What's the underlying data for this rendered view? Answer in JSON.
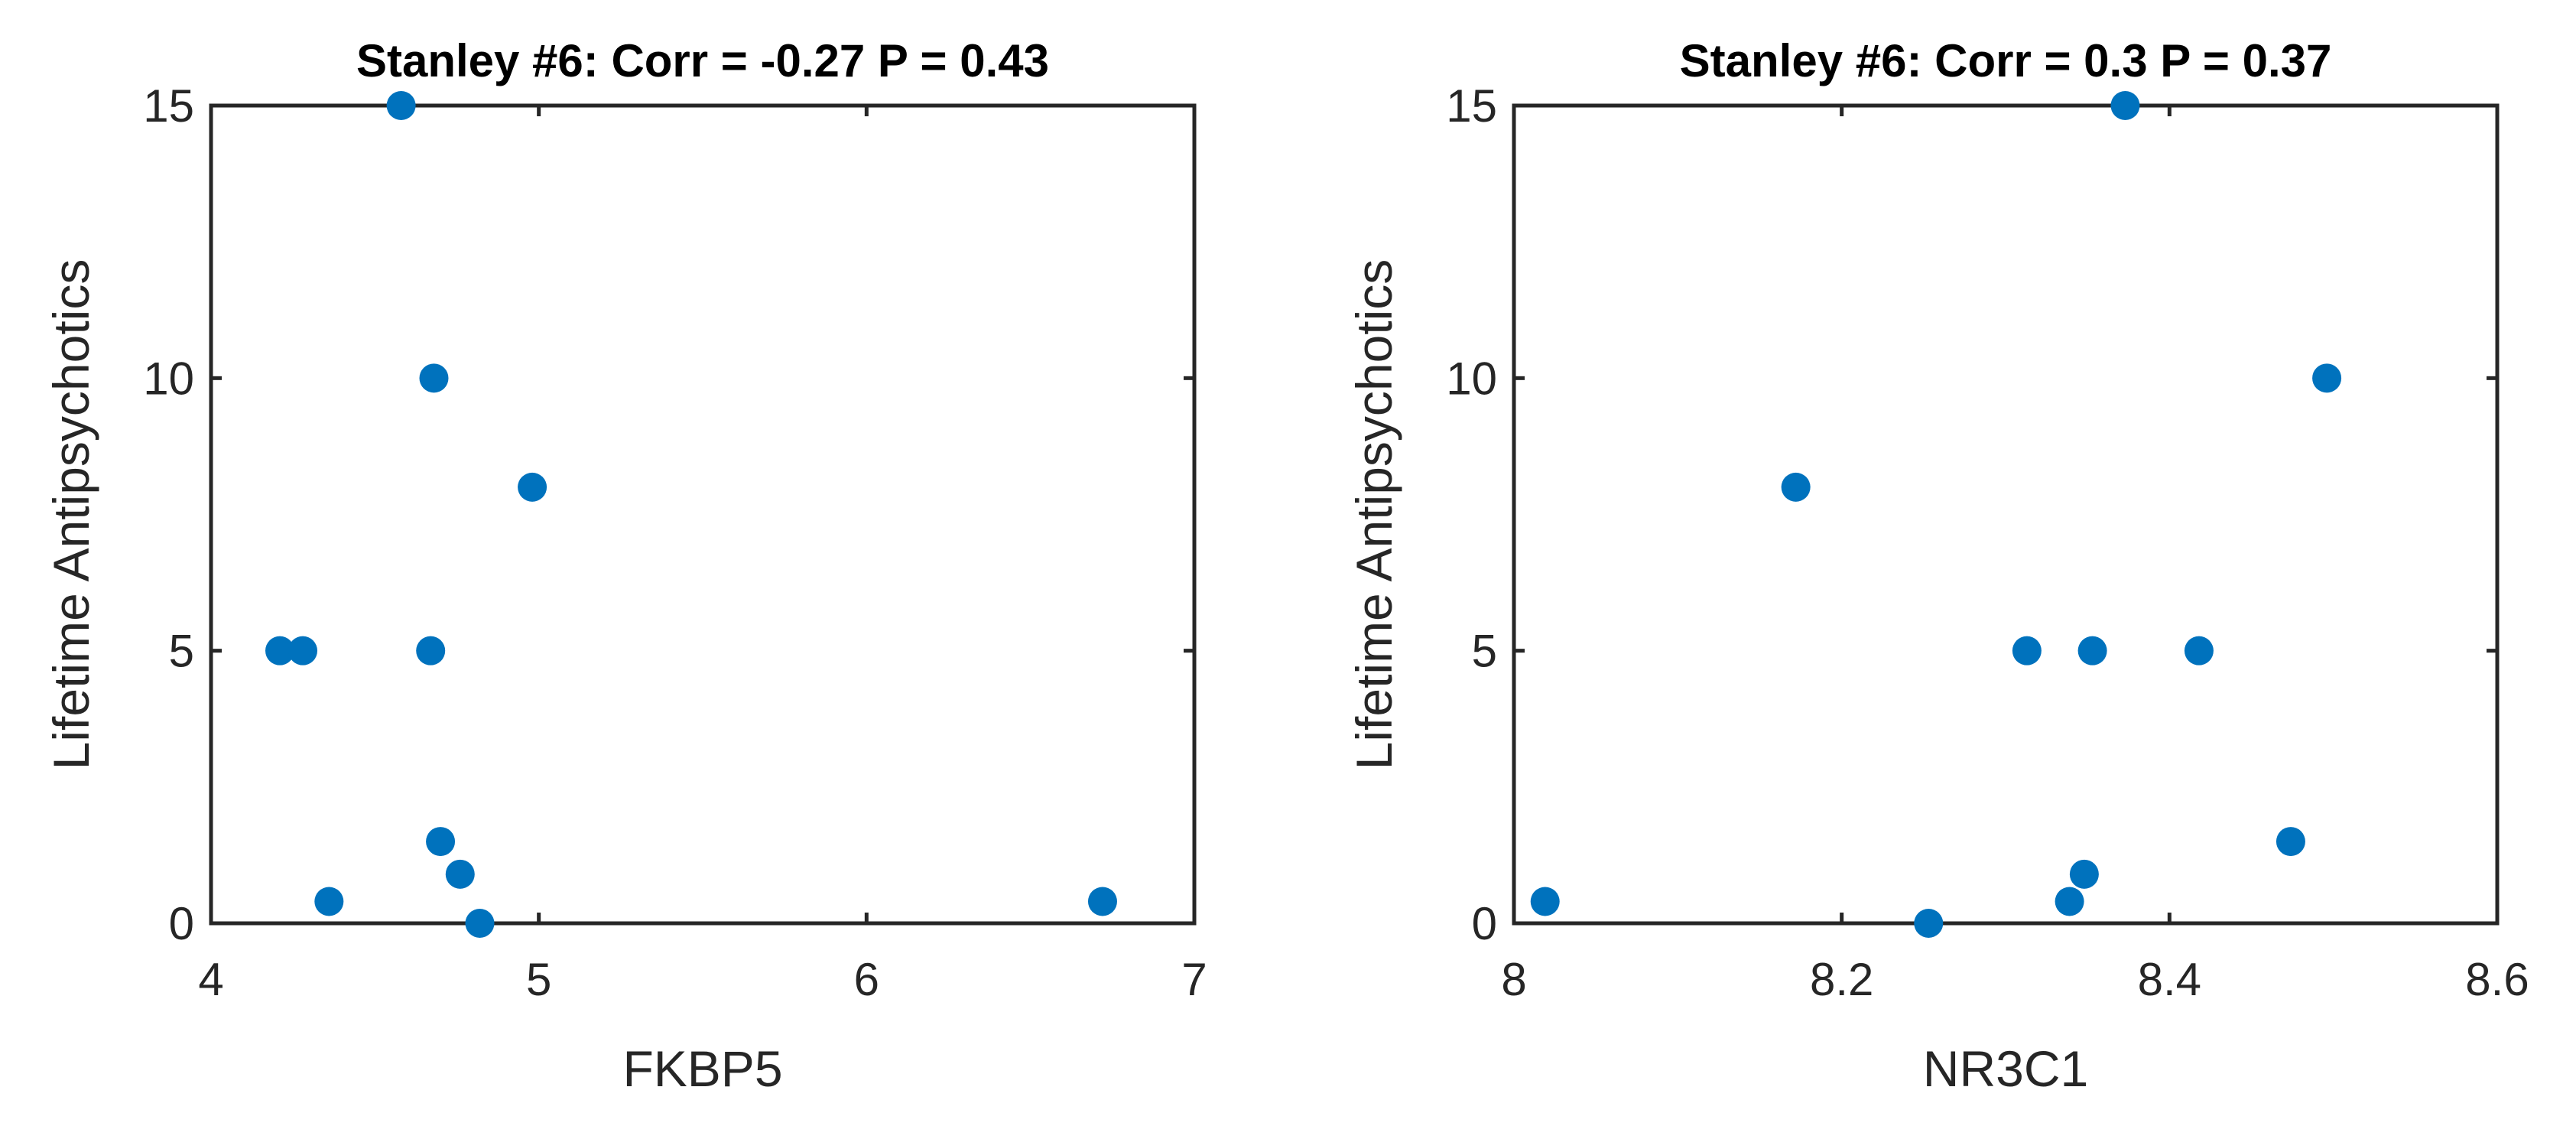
{
  "figure": {
    "background": "#ffffff",
    "marker_color": "#0072BD",
    "axis_color": "#262626"
  },
  "chart_data": [
    {
      "type": "scatter",
      "title": "Stanley #6: Corr = -0.27 P = 0.43",
      "xlabel": "FKBP5",
      "ylabel": "Lifetime Antipsychotics",
      "xlim": [
        4,
        7
      ],
      "ylim": [
        0,
        15
      ],
      "xticks": [
        4,
        5,
        6,
        7
      ],
      "xtick_labels": [
        "4",
        "5",
        "6",
        "7"
      ],
      "yticks": [
        0,
        5,
        10,
        15
      ],
      "ytick_labels": [
        "0",
        "5",
        "10",
        "15"
      ],
      "grid": false,
      "series": [
        {
          "color": "#0072BD",
          "x": [
            4.58,
            4.68,
            4.98,
            4.21,
            4.28,
            4.67,
            4.7,
            4.76,
            4.36,
            4.82,
            6.72
          ],
          "y": [
            15,
            10,
            8,
            5,
            5,
            5,
            1.5,
            0.9,
            0.4,
            0,
            0.4
          ]
        }
      ]
    },
    {
      "type": "scatter",
      "title": "Stanley #6: Corr = 0.3 P = 0.37",
      "xlabel": "NR3C1",
      "ylabel": "Lifetime Antipsychotics",
      "xlim": [
        8,
        8.6
      ],
      "ylim": [
        0,
        15
      ],
      "xticks": [
        8,
        8.2,
        8.4,
        8.6
      ],
      "xtick_labels": [
        "8",
        "8.2",
        "8.4",
        "8.6"
      ],
      "yticks": [
        0,
        5,
        10,
        15
      ],
      "ytick_labels": [
        "0",
        "5",
        "10",
        "15"
      ],
      "grid": false,
      "series": [
        {
          "color": "#0072BD",
          "x": [
            8.373,
            8.496,
            8.172,
            8.313,
            8.353,
            8.418,
            8.474,
            8.348,
            8.339,
            8.253,
            8.019
          ],
          "y": [
            15,
            10,
            8,
            5,
            5,
            5,
            1.5,
            0.9,
            0.4,
            0,
            0.4
          ]
        }
      ]
    }
  ]
}
